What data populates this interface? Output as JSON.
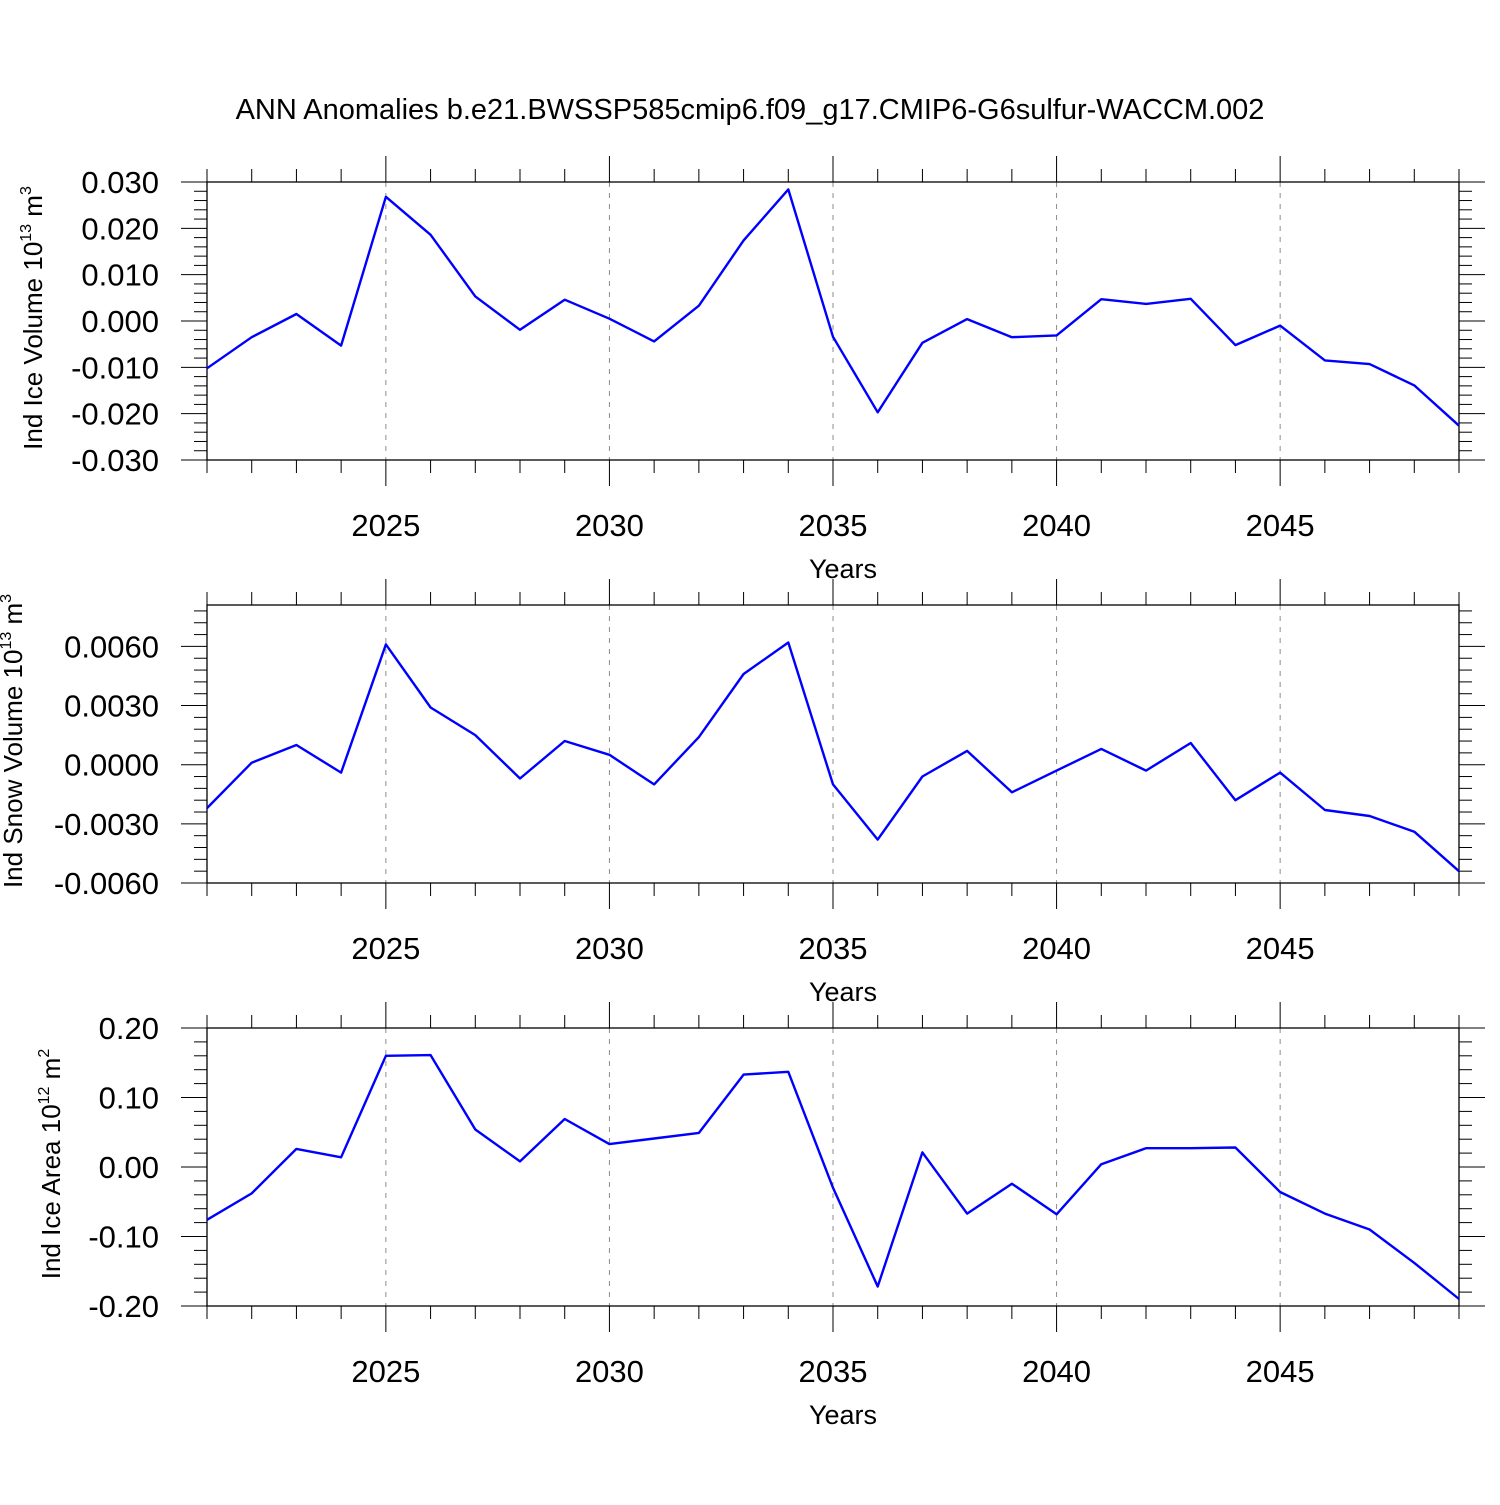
{
  "title": "ANN Anomalies b.e21.BWSSP585cmip6.f09_g17.CMIP6-G6sulfur-WACCM.002",
  "line_color": "#0000ff",
  "grid_color": "#8c8c8c",
  "chart_data": [
    {
      "type": "line",
      "xlabel": "Years",
      "ylabel": {
        "base": "Ind Ice Volume 10",
        "exp": "13",
        "unit": " m",
        "unit_exp": "3"
      },
      "xlim": [
        2021,
        2049
      ],
      "ylim": [
        -0.03,
        0.03
      ],
      "x_ticks": [
        2025,
        2030,
        2035,
        2040,
        2045
      ],
      "y_ticks": [
        -0.03,
        -0.02,
        -0.01,
        0.0,
        0.01,
        0.02,
        0.03
      ],
      "y_tick_labels": [
        "-0.030",
        "-0.020",
        "-0.010",
        "0.000",
        "0.010",
        "0.020",
        "0.030"
      ],
      "y_minor_step": 0.002,
      "grid": "vertical dashed",
      "x": [
        2021,
        2022,
        2023,
        2024,
        2025,
        2026,
        2027,
        2028,
        2029,
        2030,
        2031,
        2032,
        2033,
        2034,
        2035,
        2036,
        2037,
        2038,
        2039,
        2040,
        2041,
        2042,
        2043,
        2044,
        2045,
        2046,
        2047,
        2048,
        2049
      ],
      "y": [
        -0.0102,
        -0.0035,
        0.0015,
        -0.0053,
        0.0268,
        0.0186,
        0.0053,
        -0.0019,
        0.0046,
        0.0005,
        -0.0044,
        0.0033,
        0.0174,
        0.0284,
        -0.0034,
        -0.0197,
        -0.0047,
        0.0004,
        -0.0035,
        -0.0031,
        0.0047,
        0.0037,
        0.0048,
        -0.0052,
        -0.001,
        -0.0085,
        -0.0093,
        -0.0139,
        -0.0226
      ]
    },
    {
      "type": "line",
      "xlabel": "Years",
      "ylabel": {
        "base": "Ind Snow Volume 10",
        "exp": "13",
        "unit": " m",
        "unit_exp": "3"
      },
      "xlim": [
        2021,
        2049
      ],
      "ylim": [
        -0.006,
        0.0081
      ],
      "x_ticks": [
        2025,
        2030,
        2035,
        2040,
        2045
      ],
      "y_ticks": [
        -0.006,
        -0.003,
        0.0,
        0.003,
        0.006
      ],
      "y_tick_labels": [
        "-0.0060",
        "-0.0030",
        "0.0000",
        "0.0030",
        "0.0060"
      ],
      "y_minor_step": 0.0006,
      "grid": "vertical dashed",
      "x": [
        2021,
        2022,
        2023,
        2024,
        2025,
        2026,
        2027,
        2028,
        2029,
        2030,
        2031,
        2032,
        2033,
        2034,
        2035,
        2036,
        2037,
        2038,
        2039,
        2040,
        2041,
        2042,
        2043,
        2044,
        2045,
        2046,
        2047,
        2048,
        2049
      ],
      "y": [
        -0.0022,
        0.0001,
        0.001,
        -0.0004,
        0.0061,
        0.0029,
        0.0015,
        -0.0007,
        0.0012,
        0.0005,
        -0.001,
        0.0014,
        0.0046,
        0.0062,
        -0.001,
        -0.0038,
        -0.0006,
        0.0007,
        -0.0014,
        -0.0003,
        0.0008,
        -0.0003,
        0.0011,
        -0.0018,
        -0.0004,
        -0.0023,
        -0.0026,
        -0.0034,
        -0.0054
      ]
    },
    {
      "type": "line",
      "xlabel": "Years",
      "ylabel": {
        "base": "Ind Ice Area 10",
        "exp": "12",
        "unit": " m",
        "unit_exp": "2"
      },
      "xlim": [
        2021,
        2049
      ],
      "ylim": [
        -0.2,
        0.2
      ],
      "x_ticks": [
        2025,
        2030,
        2035,
        2040,
        2045
      ],
      "y_ticks": [
        -0.2,
        -0.1,
        0.0,
        0.1,
        0.2
      ],
      "y_tick_labels": [
        "-0.20",
        "-0.10",
        "0.00",
        "0.10",
        "0.20"
      ],
      "y_minor_step": 0.02,
      "grid": "vertical dashed",
      "x": [
        2021,
        2022,
        2023,
        2024,
        2025,
        2026,
        2027,
        2028,
        2029,
        2030,
        2031,
        2032,
        2033,
        2034,
        2035,
        2036,
        2037,
        2038,
        2039,
        2040,
        2041,
        2042,
        2043,
        2044,
        2045,
        2046,
        2047,
        2048,
        2049
      ],
      "y": [
        -0.076,
        -0.038,
        0.026,
        0.014,
        0.16,
        0.161,
        0.054,
        0.008,
        0.069,
        0.033,
        0.041,
        0.049,
        0.133,
        0.137,
        -0.03,
        -0.172,
        0.021,
        -0.067,
        -0.024,
        -0.068,
        0.004,
        0.027,
        0.027,
        0.028,
        -0.036,
        -0.067,
        -0.09,
        -0.138,
        -0.19
      ]
    }
  ]
}
